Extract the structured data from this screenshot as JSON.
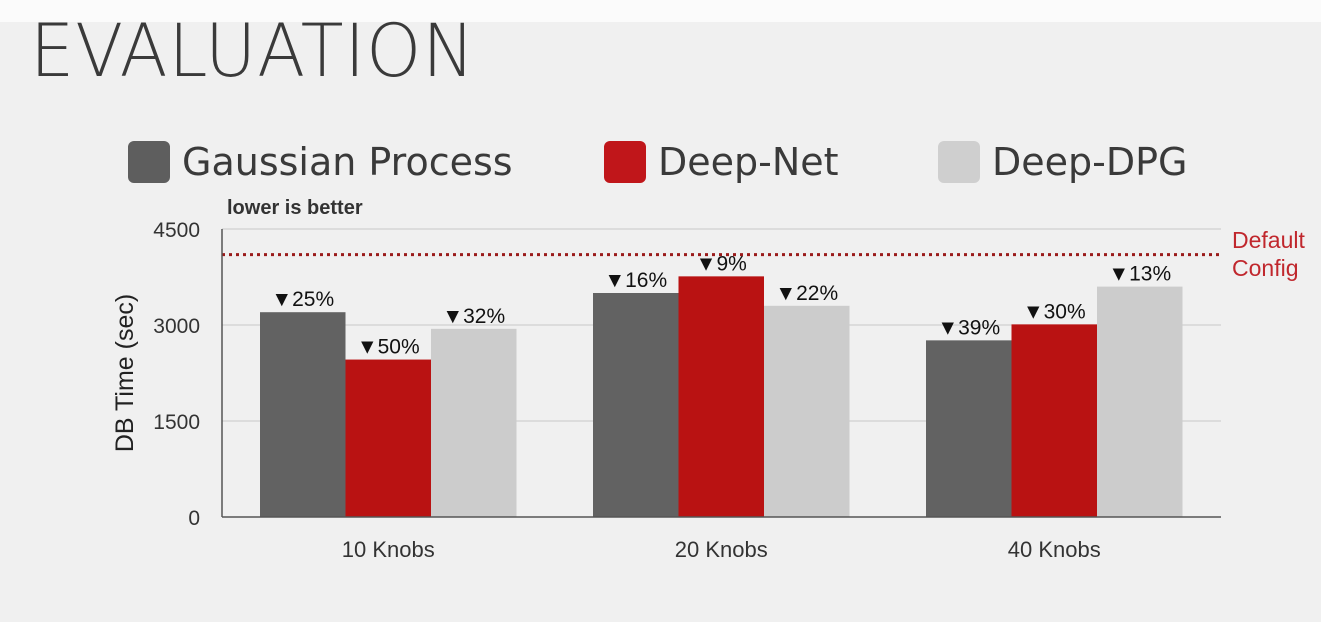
{
  "slide": {
    "title": "EVALUATION"
  },
  "colors": {
    "background": "#f0f0f0",
    "gaussian": "#626262",
    "deepnet": "#b91212",
    "deepdpg": "#cccccc",
    "default_line": "#9a1b1b"
  },
  "chart_data": {
    "type": "bar",
    "title": "",
    "subtitle": "lower is better",
    "xlabel": "",
    "ylabel": "DB Time (sec)",
    "ylim": [
      0,
      4500
    ],
    "yticks": [
      "0",
      "1500",
      "3000",
      "4500"
    ],
    "ytick_values": [
      0,
      1500,
      3000,
      4500
    ],
    "grid": true,
    "legend_placement": "top",
    "categories": [
      "10 Knobs",
      "20 Knobs",
      "40 Knobs"
    ],
    "series": [
      {
        "name": "Gaussian Process",
        "color": "#626262",
        "values": [
          3200,
          3500,
          2760
        ],
        "labels": [
          "▼25%",
          "▼16%",
          "▼39%"
        ]
      },
      {
        "name": "Deep-Net",
        "color": "#b91212",
        "values": [
          2460,
          3760,
          3010
        ],
        "labels": [
          "▼50%",
          "▼9%",
          "▼30%"
        ]
      },
      {
        "name": "Deep-DPG",
        "color": "#cccccc",
        "values": [
          2940,
          3300,
          3600
        ],
        "labels": [
          "▼32%",
          "▼22%",
          "▼13%"
        ]
      }
    ],
    "reference_line": {
      "value": 4100,
      "label_line1": "Default",
      "label_line2": "Config",
      "color": "#9a1b1b"
    }
  }
}
